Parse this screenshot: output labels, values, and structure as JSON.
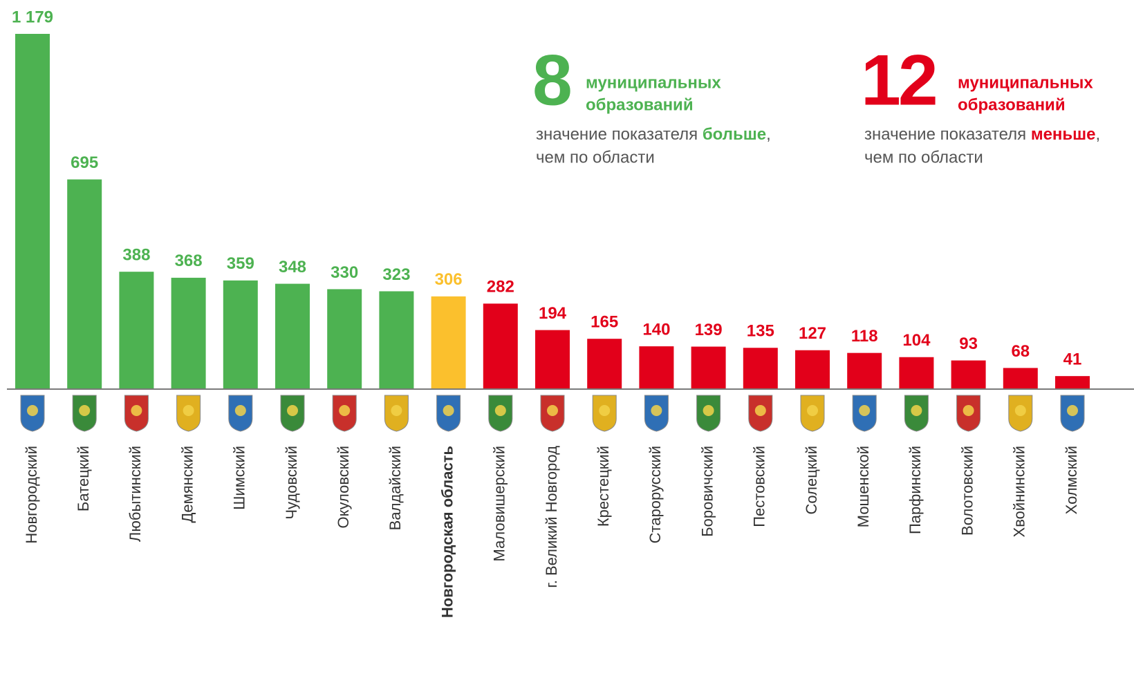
{
  "chart_data": {
    "type": "bar",
    "categories": [
      "Новгородский",
      "Батецкий",
      "Любытинский",
      "Демянский",
      "Шимский",
      "Чудовский",
      "Окуловский",
      "Валдайский",
      "Новгородская область",
      "Маловишерский",
      "г. Великий Новгород",
      "Крестецкий",
      "Старорусский",
      "Боровичский",
      "Пестовский",
      "Солецкий",
      "Мошенской",
      "Парфинский",
      "Волотовский",
      "Хвойнинский",
      "Холмский"
    ],
    "values": [
      1179,
      695,
      388,
      368,
      359,
      348,
      330,
      323,
      306,
      282,
      194,
      165,
      140,
      139,
      135,
      127,
      118,
      104,
      93,
      68,
      41
    ],
    "value_labels": [
      "1 179",
      "695",
      "388",
      "368",
      "359",
      "348",
      "330",
      "323",
      "306",
      "282",
      "194",
      "165",
      "140",
      "139",
      "135",
      "127",
      "118",
      "104",
      "93",
      "68",
      "41"
    ],
    "colors": [
      "#4db251",
      "#4db251",
      "#4db251",
      "#4db251",
      "#4db251",
      "#4db251",
      "#4db251",
      "#4db251",
      "#fbc02d",
      "#e2001a",
      "#e2001a",
      "#e2001a",
      "#e2001a",
      "#e2001a",
      "#e2001a",
      "#e2001a",
      "#e2001a",
      "#e2001a",
      "#e2001a",
      "#e2001a",
      "#e2001a"
    ],
    "annotations": [
      {
        "number": "8",
        "title_lines": [
          "муниципальных",
          "образований"
        ],
        "text_before": "значение показателя ",
        "text_bold": "больше",
        "text_after": ",",
        "text_line2": "чем по области",
        "color": "#4db251"
      },
      {
        "number": "12",
        "title_lines": [
          "муниципальных",
          "образований"
        ],
        "text_before": "значение показателя ",
        "text_bold": "меньше",
        "text_after": ",",
        "text_line2": "чем по области",
        "color": "#e2001a"
      }
    ]
  }
}
